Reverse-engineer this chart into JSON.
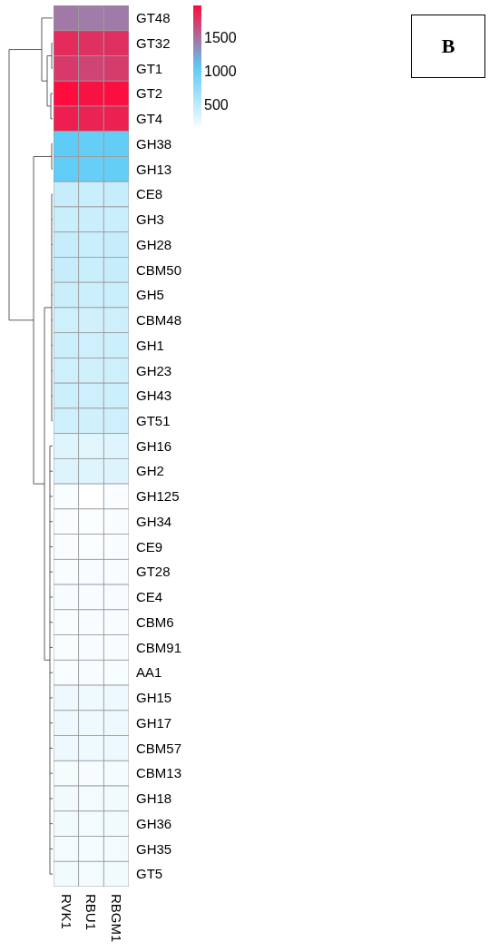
{
  "chart_data": {
    "type": "heatmap",
    "categories": [
      "RVK1",
      "RBU1",
      "RBGM1"
    ],
    "y_categories": [
      "GT48",
      "GT32",
      "GT1",
      "GT2",
      "GT4",
      "GH38",
      "GH13",
      "CE8",
      "GH3",
      "GH28",
      "CBM50",
      "GH5",
      "CBM48",
      "GH1",
      "GH23",
      "GH43",
      "GT51",
      "GH16",
      "GH2",
      "GH125",
      "GH34",
      "CE9",
      "GT28",
      "CE4",
      "CBM6",
      "CBM91",
      "AA1",
      "GH15",
      "GH17",
      "CBM57",
      "CBM13",
      "GH18",
      "GH36",
      "GH35",
      "GT5"
    ],
    "cells": [
      [
        1450,
        1430,
        1440
      ],
      [
        1820,
        1790,
        1800
      ],
      [
        1750,
        1700,
        1740
      ],
      [
        1970,
        1940,
        1960
      ],
      [
        1880,
        1860,
        1870
      ],
      [
        1040,
        1000,
        1010
      ],
      [
        1020,
        990,
        1000
      ],
      [
        440,
        430,
        440
      ],
      [
        430,
        420,
        430
      ],
      [
        440,
        430,
        440
      ],
      [
        440,
        430,
        450
      ],
      [
        420,
        410,
        430
      ],
      [
        400,
        390,
        400
      ],
      [
        410,
        400,
        410
      ],
      [
        400,
        390,
        400
      ],
      [
        410,
        400,
        410
      ],
      [
        400,
        390,
        400
      ],
      [
        300,
        290,
        300
      ],
      [
        310,
        300,
        310
      ],
      [
        160,
        120,
        150
      ],
      [
        150,
        140,
        150
      ],
      [
        150,
        140,
        150
      ],
      [
        160,
        150,
        160
      ],
      [
        170,
        160,
        170
      ],
      [
        160,
        150,
        160
      ],
      [
        160,
        150,
        160
      ],
      [
        160,
        150,
        160
      ],
      [
        220,
        210,
        220
      ],
      [
        220,
        210,
        220
      ],
      [
        220,
        210,
        220
      ],
      [
        180,
        170,
        180
      ],
      [
        200,
        190,
        200
      ],
      [
        200,
        190,
        200
      ],
      [
        190,
        180,
        190
      ],
      [
        200,
        190,
        200
      ]
    ],
    "clim": [
      120,
      1980
    ],
    "cticks": [
      500,
      1000,
      1500
    ],
    "colors": [
      "#ffffff",
      "#5ccbf6",
      "#ff0a3c"
    ],
    "annotations": [
      "B"
    ]
  }
}
